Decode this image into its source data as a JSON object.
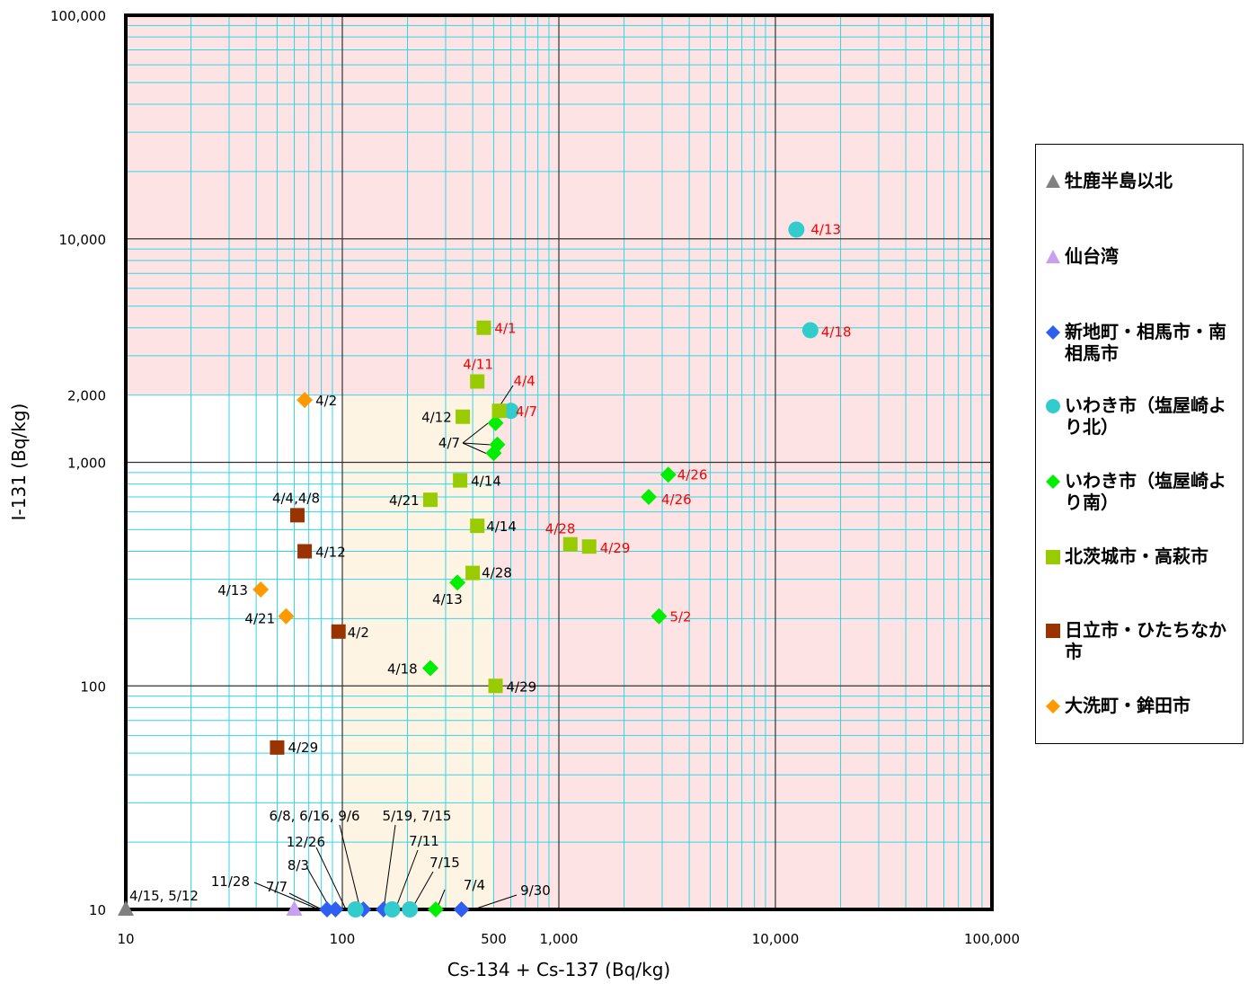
{
  "chart_data": {
    "type": "scatter",
    "xlabel": "Cs-134 + Cs-137 (Bq/kg)",
    "ylabel": "I-131 (Bq/kg)",
    "xscale": "log",
    "yscale": "log",
    "xlim": [
      10,
      100000
    ],
    "ylim": [
      10,
      100000
    ],
    "xticks": [
      {
        "value": 10,
        "label": "10"
      },
      {
        "value": 100,
        "label": "100"
      },
      {
        "value": 500,
        "label": "500"
      },
      {
        "value": 1000,
        "label": "1,000"
      },
      {
        "value": 10000,
        "label": "10,000"
      },
      {
        "value": 100000,
        "label": "100,000"
      }
    ],
    "yticks": [
      {
        "value": 10,
        "label": "10"
      },
      {
        "value": 100,
        "label": "100"
      },
      {
        "value": 1000,
        "label": "1,000"
      },
      {
        "value": 2000,
        "label": "2,000"
      },
      {
        "value": 10000,
        "label": "10,000"
      },
      {
        "value": 100000,
        "label": "100,000"
      }
    ],
    "grid": true,
    "legend_position": "right",
    "shaded_regions": [
      {
        "x": [
          10,
          100000
        ],
        "y": [
          2000,
          100000
        ],
        "color": "#fde3e3"
      },
      {
        "x": [
          500,
          100000
        ],
        "y": [
          10,
          2000
        ],
        "color": "#fde3e3"
      },
      {
        "x": [
          100,
          500
        ],
        "y": [
          10,
          2000
        ],
        "color": "#fdf4e3"
      }
    ],
    "series": [
      {
        "name": "牡鹿半島以北",
        "marker": "triangle",
        "color": "#808080",
        "points": [
          {
            "x": 10,
            "y": 10,
            "label": ""
          }
        ]
      },
      {
        "name": "仙台湾",
        "marker": "triangle",
        "color": "#c9a0f0",
        "points": [
          {
            "x": 60,
            "y": 10,
            "label": ""
          }
        ]
      },
      {
        "name": "新地町・相馬市・南相馬市",
        "marker": "diamond",
        "color": "#2f5ff0",
        "points": [
          {
            "x": 85,
            "y": 10,
            "label": ""
          },
          {
            "x": 93,
            "y": 10,
            "label": ""
          },
          {
            "x": 125,
            "y": 10,
            "label": ""
          },
          {
            "x": 155,
            "y": 10,
            "label": ""
          },
          {
            "x": 355,
            "y": 10,
            "label": ""
          }
        ]
      },
      {
        "name": "いわき市（塩屋崎より北）",
        "marker": "circle",
        "color": "#33cccc",
        "points": [
          {
            "x": 115,
            "y": 10,
            "label": ""
          },
          {
            "x": 170,
            "y": 10,
            "label": ""
          },
          {
            "x": 205,
            "y": 10,
            "label": ""
          },
          {
            "x": 600,
            "y": 1700,
            "label": ""
          },
          {
            "x": 12500,
            "y": 11000,
            "label": "4/13",
            "label_color": "#ff0000"
          },
          {
            "x": 14500,
            "y": 3900,
            "label": "4/18",
            "label_color": "#ff0000"
          }
        ]
      },
      {
        "name": "いわき市（塩屋崎より南）",
        "marker": "diamond",
        "color": "#00ee00",
        "points": [
          {
            "x": 270,
            "y": 10,
            "label": ""
          },
          {
            "x": 255,
            "y": 120,
            "label": "4/18"
          },
          {
            "x": 340,
            "y": 290,
            "label": "4/13"
          },
          {
            "x": 510,
            "y": 1500,
            "label": ""
          },
          {
            "x": 520,
            "y": 1200,
            "label": ""
          },
          {
            "x": 500,
            "y": 1100,
            "label": ""
          },
          {
            "x": 2600,
            "y": 700,
            "label": "4/26",
            "label_color": "#ff0000"
          },
          {
            "x": 3200,
            "y": 880,
            "label": "4/26",
            "label_color": "#ff0000"
          },
          {
            "x": 2900,
            "y": 205,
            "label": "5/2",
            "label_color": "#ff0000"
          }
        ]
      },
      {
        "name": "北茨城市・高萩市",
        "marker": "square",
        "color": "#99cc00",
        "points": [
          {
            "x": 450,
            "y": 4000,
            "label": "4/1",
            "label_color": "#ff0000"
          },
          {
            "x": 420,
            "y": 2300,
            "label": "4/11",
            "label_color": "#ff0000"
          },
          {
            "x": 530,
            "y": 1700,
            "label": "4/4",
            "label_color": "#ff0000"
          },
          {
            "x": 360,
            "y": 1600,
            "label": "4/12"
          },
          {
            "x": 350,
            "y": 830,
            "label": "4/14"
          },
          {
            "x": 255,
            "y": 680,
            "label": "4/21"
          },
          {
            "x": 420,
            "y": 520,
            "label": "4/14"
          },
          {
            "x": 1130,
            "y": 430,
            "label": "4/28",
            "label_color": "#ff0000"
          },
          {
            "x": 1380,
            "y": 420,
            "label": "4/29",
            "label_color": "#ff0000"
          },
          {
            "x": 400,
            "y": 320,
            "label": "4/28"
          },
          {
            "x": 510,
            "y": 100,
            "label": "4/29"
          }
        ]
      },
      {
        "name": "日立市・ひたちなか市",
        "marker": "square",
        "color": "#993300",
        "points": [
          {
            "x": 62,
            "y": 580,
            "label": "4/4,4/8"
          },
          {
            "x": 67,
            "y": 400,
            "label": "4/12"
          },
          {
            "x": 96,
            "y": 175,
            "label": "4/2"
          },
          {
            "x": 50,
            "y": 53,
            "label": "4/29"
          }
        ]
      },
      {
        "name": "大洗町・鉾田市",
        "marker": "diamond",
        "color": "#ff9900",
        "points": [
          {
            "x": 67,
            "y": 1900,
            "label": "4/2"
          },
          {
            "x": 42,
            "y": 270,
            "label": "4/13"
          },
          {
            "x": 55,
            "y": 205,
            "label": "4/21"
          }
        ]
      }
    ],
    "annotations": [
      {
        "text": "4/15, 5/12"
      },
      {
        "text": "11/28"
      },
      {
        "text": "7/7"
      },
      {
        "text": "8/3"
      },
      {
        "text": "12/26"
      },
      {
        "text": "6/8, 6/16, 9/6"
      },
      {
        "text": "5/19, 7/15"
      },
      {
        "text": "7/11"
      },
      {
        "text": "7/15"
      },
      {
        "text": "7/4"
      },
      {
        "text": "9/30"
      },
      {
        "text": "4/7"
      },
      {
        "text": "4/7",
        "color": "#ff0000"
      }
    ]
  }
}
